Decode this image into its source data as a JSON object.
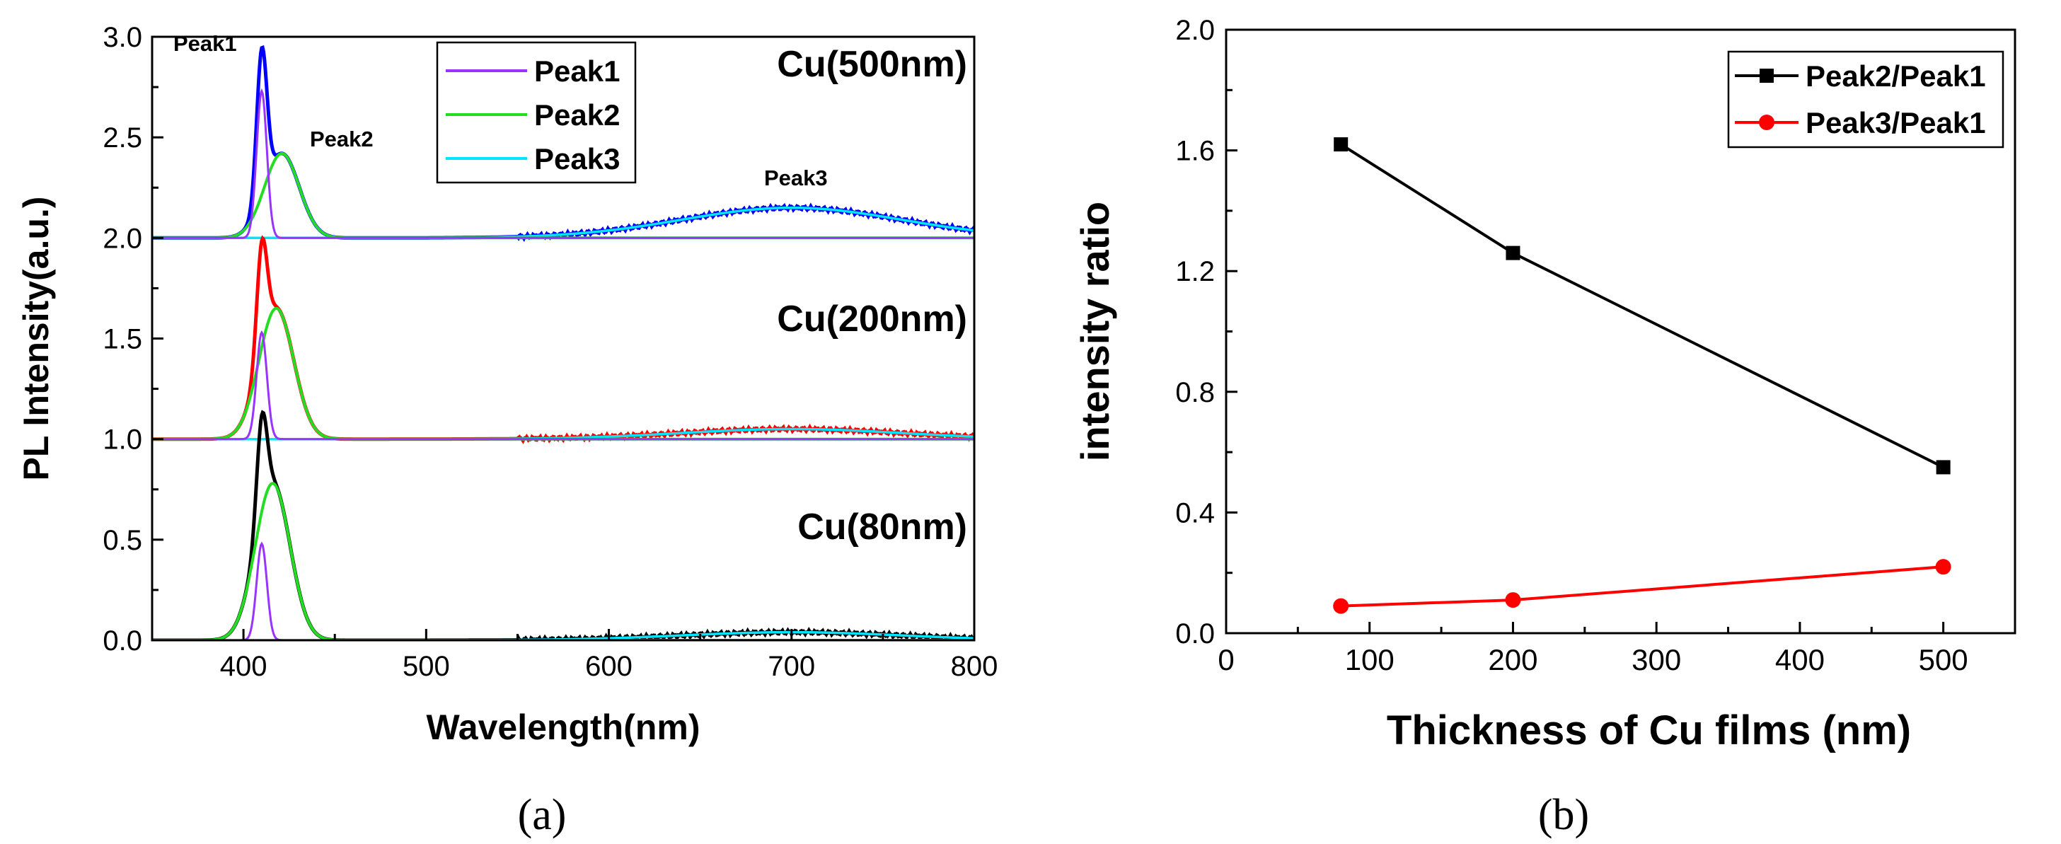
{
  "chart_data": [
    {
      "type": "line",
      "panel_label": "(a)",
      "xlabel": "Wavelength(nm)",
      "ylabel": "PL Intensity(a.u.)",
      "xlim": [
        350,
        800
      ],
      "ylim": [
        0,
        3.0
      ],
      "x_ticks": [
        400,
        500,
        600,
        700,
        800
      ],
      "y_ticks": [
        "0.0",
        "0.5",
        "1.0",
        "1.5",
        "2.0",
        "2.5",
        "3.0"
      ],
      "legend": [
        "Peak1",
        "Peak2",
        "Peak3"
      ],
      "legend_position": "top-center",
      "annotations": [
        "Peak1",
        "Peak2",
        "Peak3"
      ],
      "samples": [
        {
          "name": "Cu(500nm)",
          "offset": 2.0,
          "measured_color": "#0000ff",
          "peak1": {
            "center": 410,
            "width": 2.8,
            "height": 0.73
          },
          "peak2": {
            "center": 421,
            "width": 9.5,
            "height": 0.42
          },
          "peak3": {
            "center": 700,
            "width": 60,
            "height": 0.15
          }
        },
        {
          "name": "Cu(200nm)",
          "offset": 1.0,
          "measured_color": "#ff0000",
          "peak1": {
            "center": 410,
            "width": 2.8,
            "height": 0.53
          },
          "peak2": {
            "center": 418,
            "width": 9.5,
            "height": 0.65
          },
          "peak3": {
            "center": 700,
            "width": 60,
            "height": 0.05
          }
        },
        {
          "name": "Cu(80nm)",
          "offset": 0.0,
          "measured_color": "#000000",
          "peak1": {
            "center": 410,
            "width": 2.8,
            "height": 0.48
          },
          "peak2": {
            "center": 416,
            "width": 9.5,
            "height": 0.78
          },
          "peak3": {
            "center": 700,
            "width": 60,
            "height": 0.04
          }
        }
      ],
      "colors": {
        "peak1": "#9933ff",
        "peak2": "#22dd22",
        "peak3": "#00e5ff"
      }
    },
    {
      "type": "line",
      "panel_label": "(b)",
      "xlabel": "Thickness of Cu films (nm)",
      "ylabel": "intensity ratio",
      "xlim": [
        0,
        550
      ],
      "ylim": [
        0,
        2.0
      ],
      "x_ticks": [
        0,
        100,
        200,
        300,
        400,
        500
      ],
      "y_ticks": [
        "0.0",
        "0.4",
        "0.8",
        "1.2",
        "1.6",
        "2.0"
      ],
      "legend_position": "top-right",
      "series": [
        {
          "name": "Peak2/Peak1",
          "color": "#000000",
          "marker": "square",
          "x": [
            80,
            200,
            500
          ],
          "y": [
            1.62,
            1.26,
            0.55
          ]
        },
        {
          "name": "Peak3/Peak1",
          "color": "#ff0000",
          "marker": "circle",
          "x": [
            80,
            200,
            500
          ],
          "y": [
            0.09,
            0.11,
            0.22
          ]
        }
      ]
    }
  ]
}
